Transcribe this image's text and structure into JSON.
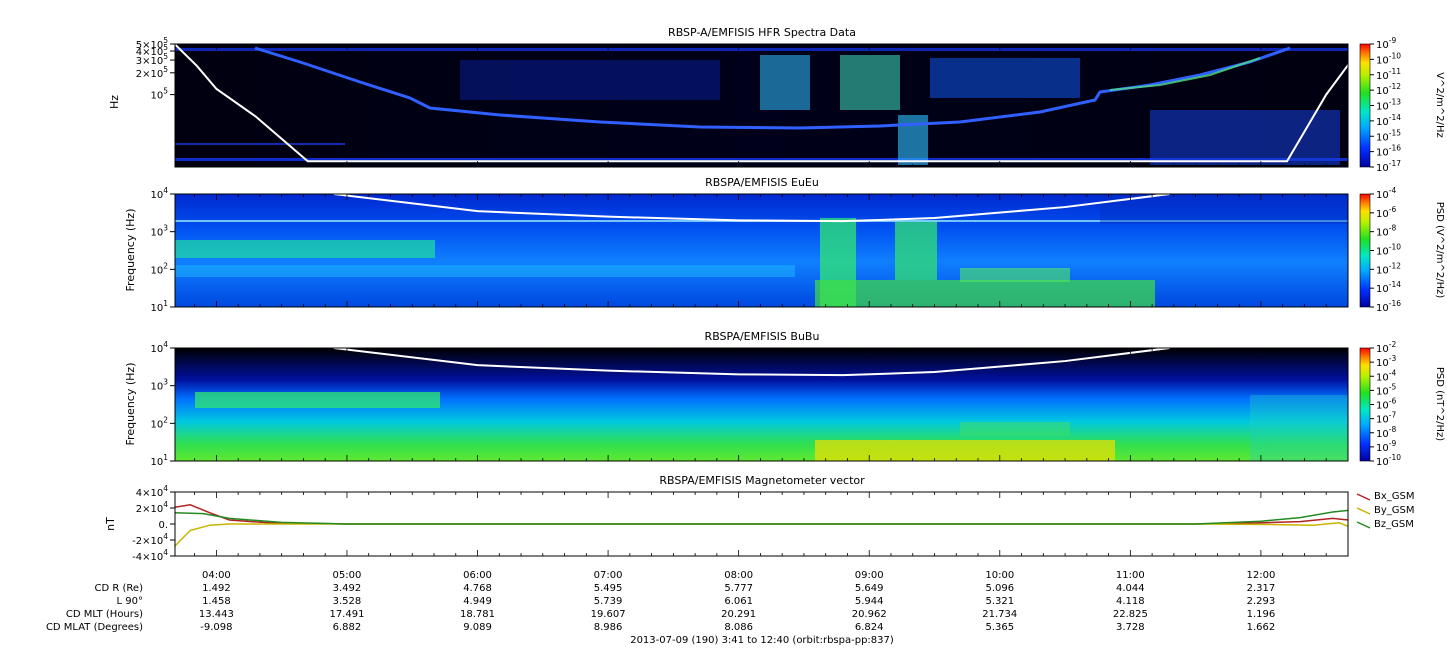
{
  "chart_data": [
    {
      "type": "heatmap",
      "title": "RBSP-A/EMFISIS  HFR Spectra Data",
      "ylabel": "Hz",
      "ylim": [
        10000,
        500000
      ],
      "yscale": "log",
      "ytick_labels": [
        "5×10^5",
        "4×10^5",
        "3×10^5",
        "2×10^5",
        "10^5"
      ],
      "colorbar": {
        "label": "V^2/m^2/Hz",
        "range_exp": [
          -9,
          -17
        ],
        "tick_labels": [
          "10^-9",
          "10^-10",
          "10^-11",
          "10^-12",
          "10^-13",
          "10^-14",
          "10^-15",
          "10^-16",
          "10^-17"
        ]
      },
      "overlay_line": {
        "color": "#ffffff",
        "points": [
          [
            3.68,
            500000
          ],
          [
            3.85,
            250000
          ],
          [
            4.0,
            120000
          ],
          [
            4.3,
            50000
          ],
          [
            4.7,
            12000
          ],
          [
            12.2,
            12000
          ],
          [
            12.5,
            100000
          ],
          [
            12.67,
            260000
          ]
        ]
      }
    },
    {
      "type": "heatmap",
      "title": "RBSPA/EMFISIS  EuEu",
      "ylabel": "Frequency (Hz)",
      "ylim": [
        10,
        10000
      ],
      "yscale": "log",
      "ytick_labels": [
        "10^4",
        "10^3",
        "10^2",
        "10^1"
      ],
      "colorbar": {
        "label": "PSD (V^2/m^2/Hz)",
        "range_exp": [
          -4,
          -16
        ],
        "tick_labels": [
          "10^-4",
          "10^-6",
          "10^-8",
          "10^-10",
          "10^-12",
          "10^-14",
          "10^-16"
        ]
      },
      "overlay_line": {
        "color": "#ffffff",
        "points": [
          [
            4.9,
            10000
          ],
          [
            6.0,
            3500
          ],
          [
            7.0,
            2500
          ],
          [
            8.0,
            2000
          ],
          [
            8.8,
            1900
          ],
          [
            9.5,
            2300
          ],
          [
            10.5,
            4500
          ],
          [
            11.3,
            10000
          ]
        ]
      }
    },
    {
      "type": "heatmap",
      "title": "RBSPA/EMFISIS  BuBu",
      "ylabel": "Frequency (Hz)",
      "ylim": [
        10,
        10000
      ],
      "yscale": "log",
      "ytick_labels": [
        "10^4",
        "10^3",
        "10^2",
        "10^1"
      ],
      "colorbar": {
        "label": "PSD (nT^2/Hz)",
        "range_exp": [
          -2,
          -10
        ],
        "tick_labels": [
          "10^-2",
          "10^-3",
          "10^-4",
          "10^-5",
          "10^-6",
          "10^-7",
          "10^-8",
          "10^-9",
          "10^-10"
        ]
      },
      "overlay_line": {
        "color": "#ffffff",
        "points": [
          [
            4.9,
            10000
          ],
          [
            6.0,
            3500
          ],
          [
            7.0,
            2500
          ],
          [
            8.0,
            2000
          ],
          [
            8.8,
            1900
          ],
          [
            9.5,
            2300
          ],
          [
            10.5,
            4500
          ],
          [
            11.3,
            10000
          ]
        ]
      }
    },
    {
      "type": "line",
      "title": "RBSPA/EMFISIS  Magnetometer vector",
      "ylabel": "nT",
      "ylim": [
        -40000,
        40000
      ],
      "ytick_labels": [
        "4×10^4",
        "2×10^4",
        "0.",
        "-2×10^4",
        "-4×10^4"
      ],
      "legend_position": "right",
      "series": [
        {
          "name": "Bx_GSM",
          "color": "#b22222",
          "points": [
            [
              3.68,
              21000
            ],
            [
              3.8,
              24000
            ],
            [
              3.95,
              14000
            ],
            [
              4.1,
              5000
            ],
            [
              4.4,
              1500
            ],
            [
              5.0,
              0
            ],
            [
              11.5,
              0
            ],
            [
              12.0,
              1500
            ],
            [
              12.3,
              3000
            ],
            [
              12.55,
              7000
            ],
            [
              12.67,
              5000
            ]
          ]
        },
        {
          "name": "By_GSM",
          "color": "#c8b400",
          "points": [
            [
              3.68,
              -28000
            ],
            [
              3.8,
              -8000
            ],
            [
              3.95,
              -1500
            ],
            [
              4.1,
              0
            ],
            [
              5.0,
              0
            ],
            [
              11.5,
              0
            ],
            [
              12.0,
              -500
            ],
            [
              12.4,
              -1500
            ],
            [
              12.6,
              1500
            ],
            [
              12.67,
              -3000
            ]
          ]
        },
        {
          "name": "Bz_GSM",
          "color": "#228b22",
          "points": [
            [
              3.68,
              14000
            ],
            [
              3.9,
              13000
            ],
            [
              4.1,
              7000
            ],
            [
              4.5,
              2000
            ],
            [
              5.0,
              0
            ],
            [
              11.5,
              0
            ],
            [
              12.0,
              3500
            ],
            [
              12.3,
              8000
            ],
            [
              12.55,
              15000
            ],
            [
              12.67,
              17000
            ]
          ]
        }
      ]
    }
  ],
  "time_axis": {
    "range_hours": [
      3.683,
      12.667
    ],
    "hour_labels": [
      "04:00",
      "05:00",
      "06:00",
      "07:00",
      "08:00",
      "09:00",
      "10:00",
      "11:00",
      "12:00"
    ]
  },
  "ephemeris": {
    "rows": [
      {
        "label": "CD R (Re)",
        "values": [
          "1.492",
          "3.492",
          "4.768",
          "5.495",
          "5.777",
          "5.649",
          "5.096",
          "4.044",
          "2.317"
        ]
      },
      {
        "label": "L 90°",
        "values": [
          "1.458",
          "3.528",
          "4.949",
          "5.739",
          "6.061",
          "5.944",
          "5.321",
          "4.118",
          "2.293"
        ]
      },
      {
        "label": "CD MLT (Hours)",
        "values": [
          "13.443",
          "17.491",
          "18.781",
          "19.607",
          "20.291",
          "20.962",
          "21.734",
          "22.825",
          "1.196"
        ]
      },
      {
        "label": "CD MLAT (Degrees)",
        "values": [
          "-9.098",
          "6.882",
          "9.089",
          "8.986",
          "8.086",
          "6.824",
          "5.365",
          "3.728",
          "1.662"
        ]
      }
    ]
  },
  "footer": "2013-07-09 (190) 3:41 to 12:40 (orbit:rbspa-pp:837)"
}
